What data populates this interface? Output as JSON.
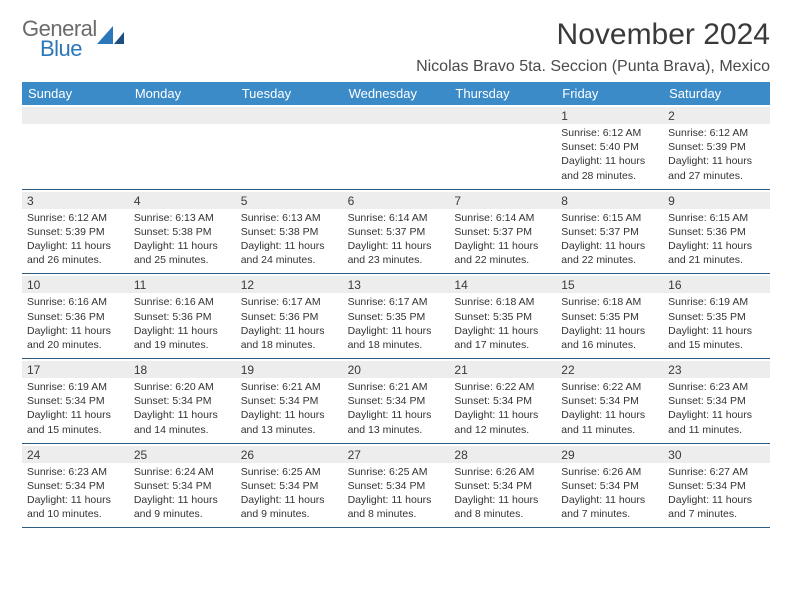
{
  "brand": {
    "general": "General",
    "blue": "Blue"
  },
  "colors": {
    "header_bg": "#3b8bc9",
    "header_text": "#ffffff",
    "daynum_bg": "#ededed",
    "rule": "#2c5a82",
    "logo_gray": "#6b6b6b",
    "logo_blue": "#2c77ba",
    "text": "#333333"
  },
  "title": "November 2024",
  "location": "Nicolas Bravo 5ta. Seccion (Punta Brava), Mexico",
  "day_headers": [
    "Sunday",
    "Monday",
    "Tuesday",
    "Wednesday",
    "Thursday",
    "Friday",
    "Saturday"
  ],
  "weeks": [
    [
      null,
      null,
      null,
      null,
      null,
      {
        "n": "1",
        "sr": "6:12 AM",
        "ss": "5:40 PM",
        "dl": "11 hours and 28 minutes."
      },
      {
        "n": "2",
        "sr": "6:12 AM",
        "ss": "5:39 PM",
        "dl": "11 hours and 27 minutes."
      }
    ],
    [
      {
        "n": "3",
        "sr": "6:12 AM",
        "ss": "5:39 PM",
        "dl": "11 hours and 26 minutes."
      },
      {
        "n": "4",
        "sr": "6:13 AM",
        "ss": "5:38 PM",
        "dl": "11 hours and 25 minutes."
      },
      {
        "n": "5",
        "sr": "6:13 AM",
        "ss": "5:38 PM",
        "dl": "11 hours and 24 minutes."
      },
      {
        "n": "6",
        "sr": "6:14 AM",
        "ss": "5:37 PM",
        "dl": "11 hours and 23 minutes."
      },
      {
        "n": "7",
        "sr": "6:14 AM",
        "ss": "5:37 PM",
        "dl": "11 hours and 22 minutes."
      },
      {
        "n": "8",
        "sr": "6:15 AM",
        "ss": "5:37 PM",
        "dl": "11 hours and 22 minutes."
      },
      {
        "n": "9",
        "sr": "6:15 AM",
        "ss": "5:36 PM",
        "dl": "11 hours and 21 minutes."
      }
    ],
    [
      {
        "n": "10",
        "sr": "6:16 AM",
        "ss": "5:36 PM",
        "dl": "11 hours and 20 minutes."
      },
      {
        "n": "11",
        "sr": "6:16 AM",
        "ss": "5:36 PM",
        "dl": "11 hours and 19 minutes."
      },
      {
        "n": "12",
        "sr": "6:17 AM",
        "ss": "5:36 PM",
        "dl": "11 hours and 18 minutes."
      },
      {
        "n": "13",
        "sr": "6:17 AM",
        "ss": "5:35 PM",
        "dl": "11 hours and 18 minutes."
      },
      {
        "n": "14",
        "sr": "6:18 AM",
        "ss": "5:35 PM",
        "dl": "11 hours and 17 minutes."
      },
      {
        "n": "15",
        "sr": "6:18 AM",
        "ss": "5:35 PM",
        "dl": "11 hours and 16 minutes."
      },
      {
        "n": "16",
        "sr": "6:19 AM",
        "ss": "5:35 PM",
        "dl": "11 hours and 15 minutes."
      }
    ],
    [
      {
        "n": "17",
        "sr": "6:19 AM",
        "ss": "5:34 PM",
        "dl": "11 hours and 15 minutes."
      },
      {
        "n": "18",
        "sr": "6:20 AM",
        "ss": "5:34 PM",
        "dl": "11 hours and 14 minutes."
      },
      {
        "n": "19",
        "sr": "6:21 AM",
        "ss": "5:34 PM",
        "dl": "11 hours and 13 minutes."
      },
      {
        "n": "20",
        "sr": "6:21 AM",
        "ss": "5:34 PM",
        "dl": "11 hours and 13 minutes."
      },
      {
        "n": "21",
        "sr": "6:22 AM",
        "ss": "5:34 PM",
        "dl": "11 hours and 12 minutes."
      },
      {
        "n": "22",
        "sr": "6:22 AM",
        "ss": "5:34 PM",
        "dl": "11 hours and 11 minutes."
      },
      {
        "n": "23",
        "sr": "6:23 AM",
        "ss": "5:34 PM",
        "dl": "11 hours and 11 minutes."
      }
    ],
    [
      {
        "n": "24",
        "sr": "6:23 AM",
        "ss": "5:34 PM",
        "dl": "11 hours and 10 minutes."
      },
      {
        "n": "25",
        "sr": "6:24 AM",
        "ss": "5:34 PM",
        "dl": "11 hours and 9 minutes."
      },
      {
        "n": "26",
        "sr": "6:25 AM",
        "ss": "5:34 PM",
        "dl": "11 hours and 9 minutes."
      },
      {
        "n": "27",
        "sr": "6:25 AM",
        "ss": "5:34 PM",
        "dl": "11 hours and 8 minutes."
      },
      {
        "n": "28",
        "sr": "6:26 AM",
        "ss": "5:34 PM",
        "dl": "11 hours and 8 minutes."
      },
      {
        "n": "29",
        "sr": "6:26 AM",
        "ss": "5:34 PM",
        "dl": "11 hours and 7 minutes."
      },
      {
        "n": "30",
        "sr": "6:27 AM",
        "ss": "5:34 PM",
        "dl": "11 hours and 7 minutes."
      }
    ]
  ],
  "labels": {
    "sunrise": "Sunrise: ",
    "sunset": "Sunset: ",
    "daylight": "Daylight: "
  }
}
